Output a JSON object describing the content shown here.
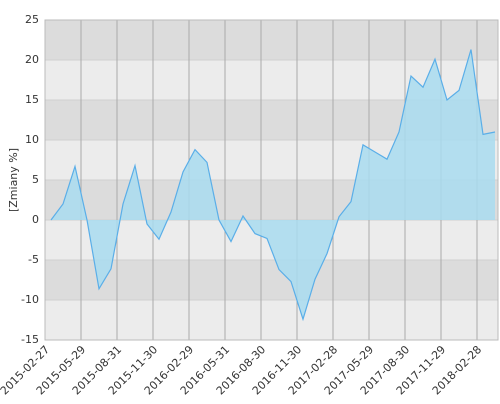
{
  "chart_data": {
    "type": "area",
    "y_label": "[Zmiany %]",
    "x": [
      0.5,
      1.5,
      2.5,
      3.5,
      4.5,
      5.5,
      6.5,
      7.5,
      8.5,
      9.5,
      10.5,
      11.5,
      12.5,
      13.5,
      14.5,
      15.5,
      16.5,
      17.5,
      18.5,
      19.5,
      20.5,
      21.5,
      22.5,
      23.5,
      24.5,
      25.5,
      26.5,
      27.5,
      28.5,
      29.5,
      30.5,
      31.5,
      32.5,
      33.5,
      34.5,
      35.5,
      36.5,
      37.5
    ],
    "values": [
      0,
      2,
      6.7,
      0,
      -8.6,
      -6.1,
      2,
      6.8,
      -0.5,
      -2.4,
      1,
      6,
      8.8,
      7.2,
      0,
      -2.7,
      0.5,
      -1.7,
      -2.3,
      -6.2,
      -7.7,
      -12.4,
      -7.4,
      -4.2,
      0.4,
      2.3,
      9.4,
      8.5,
      7.6,
      11,
      18,
      16.6,
      20.1,
      15,
      16.2,
      21.3,
      10.7,
      11
    ],
    "color": "#5aaee8",
    "fill_color": "#a9dcf0",
    "xlim": [
      0,
      37.75
    ],
    "xticks": [
      {
        "value": 0,
        "label": "2015-02-27"
      },
      {
        "value": 3,
        "label": "2015-05-29"
      },
      {
        "value": 6,
        "label": "2015-08-31"
      },
      {
        "value": 9,
        "label": "2015-11-30"
      },
      {
        "value": 12,
        "label": "2016-02-29"
      },
      {
        "value": 15,
        "label": "2016-05-31"
      },
      {
        "value": 18,
        "label": "2016-08-30"
      },
      {
        "value": 21,
        "label": "2016-11-30"
      },
      {
        "value": 24,
        "label": "2017-02-28"
      },
      {
        "value": 27,
        "label": "2017-05-29"
      },
      {
        "value": 30,
        "label": "2017-08-30"
      },
      {
        "value": 33,
        "label": "2017-11-29"
      },
      {
        "value": 36,
        "label": "2018-02-28"
      }
    ],
    "ylim": [
      -15,
      25
    ],
    "yticks": [
      -15,
      -10,
      -5,
      0,
      5,
      10,
      15,
      20,
      25
    ],
    "grid": true
  }
}
